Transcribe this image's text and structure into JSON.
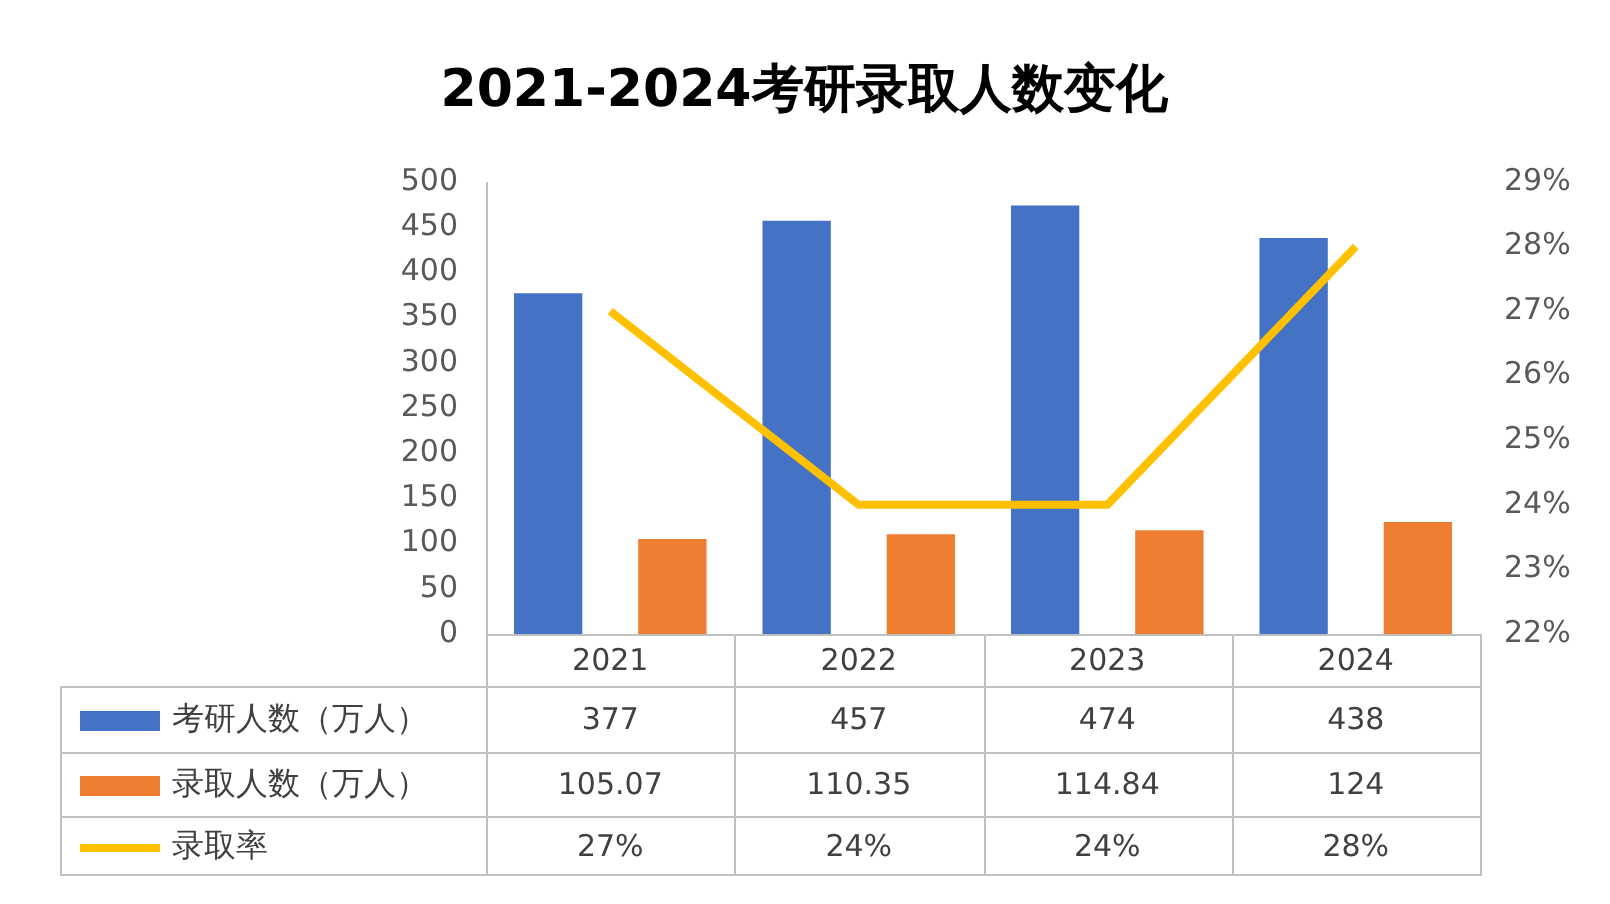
{
  "chart_data": {
    "type": "bar",
    "title": "2021-2024考研录取人数变化",
    "categories": [
      "2021",
      "2022",
      "2023",
      "2024"
    ],
    "series": [
      {
        "name": "考研人数（万人）",
        "color": "#4472c4",
        "values": [
          377,
          457,
          474,
          438
        ]
      },
      {
        "name": "录取人数（万人）",
        "color": "#ed7d31",
        "values": [
          105.07,
          110.35,
          114.84,
          124
        ]
      },
      {
        "name": "录取率",
        "type": "line",
        "axis": "y2",
        "color": "#ffc000",
        "values": [
          27,
          24,
          24,
          28
        ],
        "marker": "none",
        "value_labels": [
          "27%",
          "24%",
          "24%",
          "28%"
        ]
      }
    ],
    "ylim": [
      0,
      500
    ],
    "yticks": [
      0,
      50,
      100,
      150,
      200,
      250,
      300,
      350,
      400,
      450,
      500
    ],
    "y2lim": [
      22,
      29
    ],
    "y2ticks": [
      {
        "value": 22,
        "label": "22%"
      },
      {
        "value": 23,
        "label": "23%"
      },
      {
        "value": 24,
        "label": "24%"
      },
      {
        "value": 25,
        "label": "25%"
      },
      {
        "value": 26,
        "label": "26%"
      },
      {
        "value": 27,
        "label": "27%"
      },
      {
        "value": 28,
        "label": "28%"
      },
      {
        "value": 29,
        "label": "29%"
      }
    ],
    "data_labels": true,
    "legend": "bottom",
    "grid": false
  }
}
